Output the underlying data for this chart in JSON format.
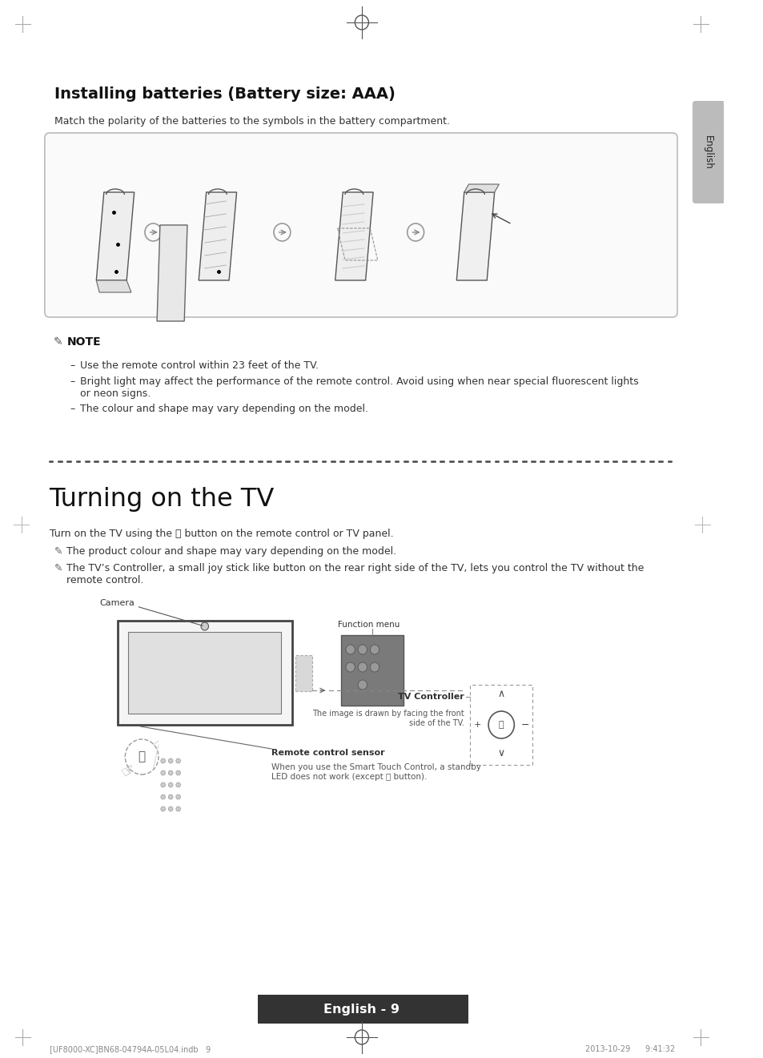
{
  "page_bg": "#ffffff",
  "title1": "Installing batteries (Battery size: AAA)",
  "subtitle1": "Match the polarity of the batteries to the symbols in the battery compartment.",
  "note_title": "NOTE",
  "note_bullets": [
    "Use the remote control within 23 feet of the TV.",
    "Bright light may affect the performance of the remote control. Avoid using when near special fluorescent lights\nor neon signs.",
    "The colour and shape may vary depending on the model."
  ],
  "section2_title": "Turning on the TV",
  "section2_text1": "Turn on the TV using the ⏻ button on the remote control or TV panel.",
  "section2_note1": "The product colour and shape may vary depending on the model.",
  "section2_note2": "The TV’s Controller, a small joy stick like button on the rear right side of the TV, lets you control the TV without the\nremote control.",
  "label_camera": "Camera",
  "label_function_menu": "Function menu",
  "label_tv_controller": "TV Controller",
  "label_tv_controller_sub": "The image is drawn by facing the front\nside of the TV.",
  "label_remote_sensor": "Remote control sensor",
  "label_remote_sensor_sub": "When you use the Smart Touch Control, a standby\nLED does not work (except ⏻ button).",
  "footer_text": "English - 9",
  "footer_file": "[UF8000-XC]BN68-04794A-05L04.indb   9",
  "footer_date": "2013-10-29      9:41:32",
  "tab_text": "English"
}
